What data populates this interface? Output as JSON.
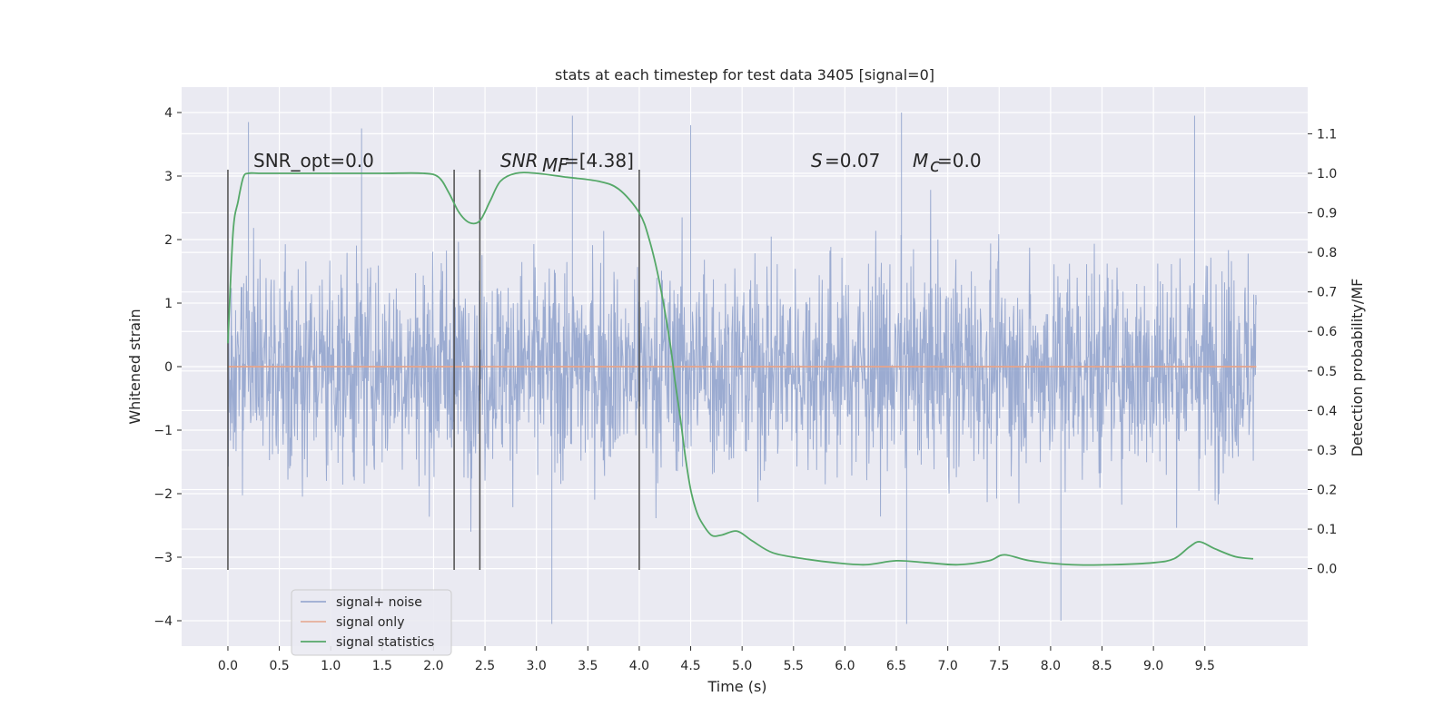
{
  "chart_data": {
    "type": "line",
    "title": "stats at each timestep for test data 3405 [signal=0]",
    "xlabel": "Time (s)",
    "ylabel": "Whitened strain",
    "y2label": "Detection probability/MF",
    "xlim": [
      -0.45,
      10.5
    ],
    "ylim": [
      -4.4,
      4.4
    ],
    "y2lim": [
      -0.196,
      1.218
    ],
    "x_ticks": [
      0.0,
      0.5,
      1.0,
      1.5,
      2.0,
      2.5,
      3.0,
      3.5,
      4.0,
      4.5,
      5.0,
      5.5,
      6.0,
      6.5,
      7.0,
      7.5,
      8.0,
      8.5,
      9.0,
      9.5
    ],
    "x_tick_labels": [
      "0.0",
      "0.5",
      "1.0",
      "1.5",
      "2.0",
      "2.5",
      "3.0",
      "3.5",
      "4.0",
      "4.5",
      "5.0",
      "5.5",
      "6.0",
      "6.5",
      "7.0",
      "7.5",
      "8.0",
      "8.5",
      "9.0",
      "9.5"
    ],
    "y_ticks": [
      -4,
      -3,
      -2,
      -1,
      0,
      1,
      2,
      3,
      4
    ],
    "y_tick_labels": [
      "−4",
      "−3",
      "−2",
      "−1",
      "0",
      "1",
      "2",
      "3",
      "4"
    ],
    "y2_ticks": [
      0.0,
      0.1,
      0.2,
      0.3,
      0.4,
      0.5,
      0.6,
      0.7,
      0.8,
      0.9,
      1.0,
      1.1
    ],
    "y2_tick_labels": [
      "0.0",
      "0.1",
      "0.2",
      "0.3",
      "0.4",
      "0.5",
      "0.6",
      "0.7",
      "0.8",
      "0.9",
      "1.0",
      "1.1"
    ],
    "grid": true,
    "legend_position": "lower-left",
    "series": [
      {
        "name": "signal+ noise",
        "color": "#8da0cb",
        "kind": "noise",
        "x_start": 0.0,
        "x_end": 10.0,
        "envelope_min": -4.1,
        "envelope_max": 4.0,
        "notable_peaks": [
          [
            0.2,
            3.85
          ],
          [
            1.3,
            3.75
          ],
          [
            3.35,
            3.95
          ],
          [
            4.5,
            3.8
          ],
          [
            6.55,
            4.0
          ],
          [
            9.4,
            3.95
          ],
          [
            3.15,
            -4.05
          ],
          [
            6.6,
            -4.05
          ],
          [
            8.1,
            -4.0
          ]
        ]
      },
      {
        "name": "signal only",
        "color": "#e5a48b",
        "x": [
          0.0,
          10.0
        ],
        "values": [
          0.0,
          0.0
        ]
      },
      {
        "name": "signal statistics",
        "color": "#55a868",
        "axis": "right",
        "x": [
          0.0,
          0.05,
          0.1,
          0.15,
          0.2,
          0.3,
          0.5,
          1.0,
          1.5,
          1.9,
          2.05,
          2.15,
          2.25,
          2.35,
          2.45,
          2.55,
          2.65,
          2.8,
          3.0,
          3.3,
          3.6,
          3.8,
          4.0,
          4.1,
          4.2,
          4.3,
          4.35,
          4.4,
          4.45,
          4.5,
          4.55,
          4.6,
          4.7,
          4.8,
          4.95,
          5.1,
          5.3,
          5.6,
          5.9,
          6.2,
          6.5,
          6.8,
          7.1,
          7.4,
          7.55,
          7.8,
          8.2,
          8.6,
          9.0,
          9.2,
          9.35,
          9.45,
          9.6,
          9.8,
          9.97
        ],
        "values": [
          0.57,
          0.85,
          0.93,
          0.99,
          1.0,
          1.0,
          1.0,
          1.0,
          1.0,
          1.0,
          0.99,
          0.95,
          0.9,
          0.875,
          0.88,
          0.93,
          0.98,
          1.0,
          1.0,
          0.99,
          0.98,
          0.96,
          0.9,
          0.83,
          0.72,
          0.57,
          0.47,
          0.38,
          0.28,
          0.2,
          0.15,
          0.12,
          0.085,
          0.085,
          0.095,
          0.07,
          0.04,
          0.025,
          0.015,
          0.01,
          0.02,
          0.015,
          0.01,
          0.02,
          0.035,
          0.02,
          0.01,
          0.01,
          0.015,
          0.025,
          0.055,
          0.068,
          0.05,
          0.03,
          0.025
        ]
      }
    ],
    "vertical_lines": [
      0.0,
      2.2,
      2.45,
      4.0
    ],
    "vertical_line_color": "#4d4d4d",
    "vertical_line_range": [
      -3.2,
      3.1
    ],
    "annotations": {
      "snr_opt": "SNR_opt=0.0",
      "snr_mf_main": "SNR",
      "snr_mf_sub": "MF",
      "snr_mf_value": "=[4.38]",
      "s_symbol": "S",
      "s_value": "=0.07",
      "mc_symbol": "M",
      "mc_sub": "c",
      "mc_value": "=0.0"
    },
    "colors": {
      "plot_background": "#eaeaf2",
      "grid": "#ffffff",
      "legend_background": "#eaeaf2",
      "legend_border": "#cccccc"
    }
  }
}
